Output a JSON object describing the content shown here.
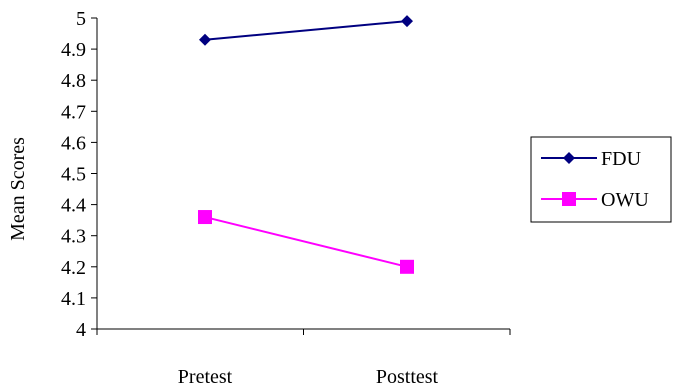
{
  "chart_data": {
    "type": "line",
    "title": "",
    "xlabel": "",
    "ylabel": "Mean Scores",
    "categories": [
      "Pretest",
      "Posttest"
    ],
    "ylim": [
      4,
      5
    ],
    "ytick_step": 0.1,
    "yticks": [
      "4",
      "4.1",
      "4.2",
      "4.3",
      "4.4",
      "4.5",
      "4.6",
      "4.7",
      "4.8",
      "4.9",
      "5"
    ],
    "grid": false,
    "legend_position": "right",
    "series": [
      {
        "name": "FDU",
        "values": [
          4.93,
          4.99
        ],
        "color": "#000080",
        "marker": "diamond"
      },
      {
        "name": "OWU",
        "values": [
          4.36,
          4.2
        ],
        "color": "#FF00FF",
        "marker": "square"
      }
    ]
  }
}
